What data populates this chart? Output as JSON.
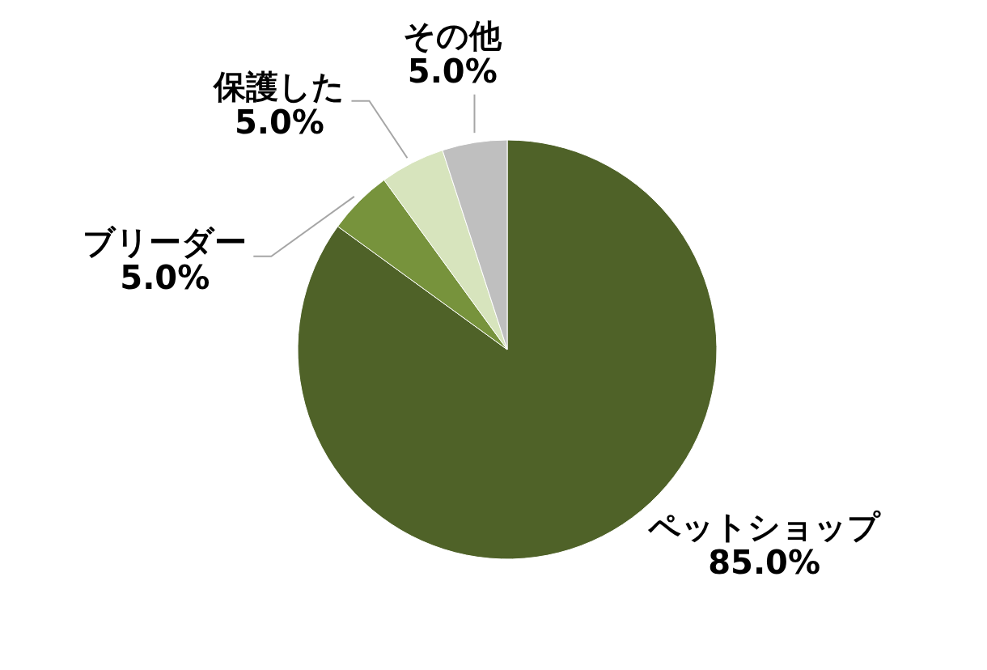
{
  "chart_data": {
    "type": "pie",
    "categories": [
      "ペットショップ",
      "ブリーダー",
      "保護した",
      "その他"
    ],
    "values": [
      85,
      5,
      5,
      5
    ],
    "value_labels": [
      "85.0%",
      "5.0%",
      "5.0%",
      "5.0%"
    ],
    "colors": [
      "#4f6228",
      "#77933c",
      "#d7e4bd",
      "#bfbfbf"
    ],
    "legend": false
  }
}
